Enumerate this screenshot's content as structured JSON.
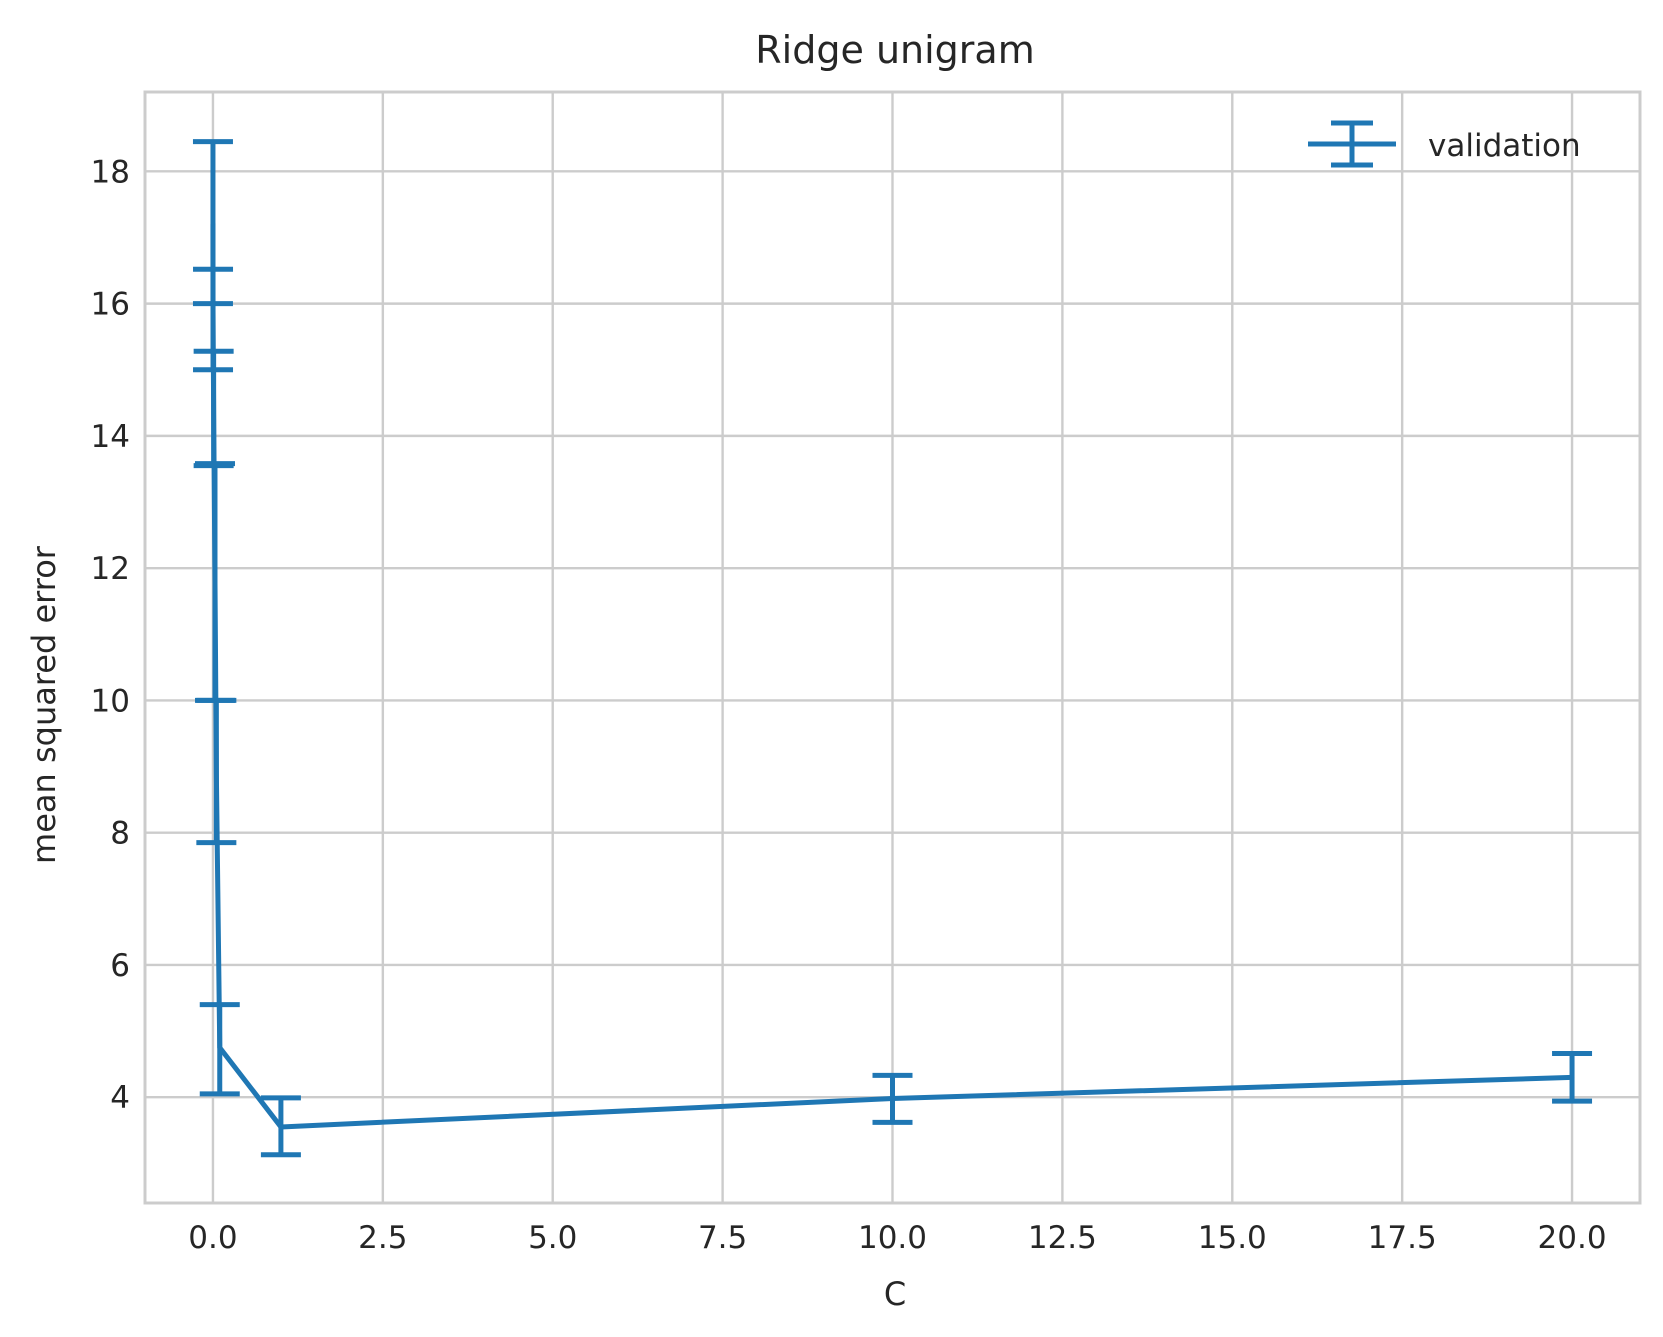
{
  "chart_data": {
    "type": "line",
    "title": "Ridge unigram",
    "xlabel": "C",
    "ylabel": "mean squared error",
    "xlim": [
      -1.0,
      21.0
    ],
    "ylim": [
      2.4,
      19.2
    ],
    "xticks": [
      0.0,
      2.5,
      5.0,
      7.5,
      10.0,
      12.5,
      15.0,
      17.5,
      20.0
    ],
    "xtick_labels": [
      "0.0",
      "2.5",
      "5.0",
      "7.5",
      "10.0",
      "12.5",
      "15.0",
      "17.5",
      "20.0"
    ],
    "yticks": [
      4,
      6,
      8,
      10,
      12,
      14,
      16,
      18
    ],
    "ytick_labels": [
      "4",
      "6",
      "8",
      "10",
      "12",
      "14",
      "16",
      "18"
    ],
    "grid": true,
    "legend_position": "top-right",
    "series": [
      {
        "name": "validation",
        "color": "#1f77b4",
        "errorbars": true,
        "x": [
          0.0001,
          0.001,
          0.01,
          0.03,
          0.05,
          0.1,
          1,
          10,
          20
        ],
        "y": [
          17.2,
          15.9,
          14.4,
          11.8,
          8.9,
          4.75,
          3.55,
          3.98,
          4.3
        ],
        "yerr_low": [
          16.0,
          15.0,
          13.55,
          10.0,
          7.85,
          4.05,
          3.13,
          3.62,
          3.94
        ],
        "yerr_high": [
          18.45,
          16.52,
          15.28,
          13.58,
          10.0,
          5.4,
          3.99,
          4.33,
          4.66
        ]
      }
    ]
  },
  "legend": {
    "items": [
      {
        "label": "validation",
        "color": "#1f77b4"
      }
    ]
  }
}
